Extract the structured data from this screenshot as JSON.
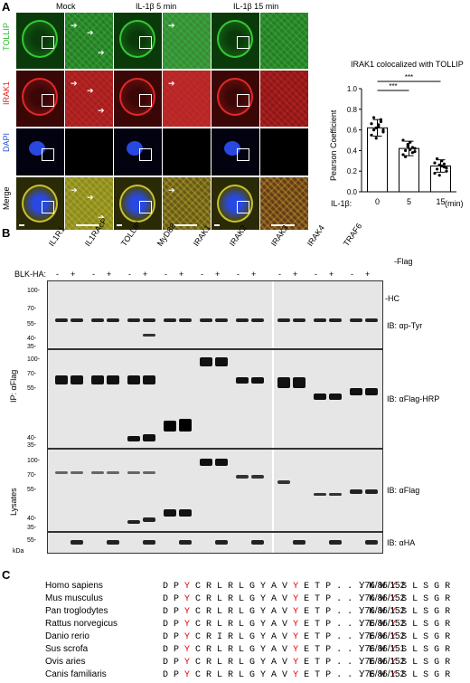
{
  "panels": {
    "a": "A",
    "b": "B",
    "c": "C"
  },
  "panel_a": {
    "conditions": [
      "Mock",
      "IL-1β 5 min",
      "IL-1β 15 min"
    ],
    "rows": [
      {
        "label": "TOLLIP",
        "color": "#2db82d"
      },
      {
        "label": "IRAK1",
        "color": "#e02020"
      },
      {
        "label": "DAPI",
        "color": "#2a4fd6"
      },
      {
        "label": "Merge",
        "color": "#000000"
      }
    ]
  },
  "chart_data": {
    "type": "bar",
    "title": "IRAK1 colocalized with TOLLIP",
    "ylabel": "Pearson Coefficient",
    "xlabel": "IL-1β:",
    "x_unit": "(min)",
    "categories": [
      "0",
      "5",
      "15"
    ],
    "values": [
      0.62,
      0.42,
      0.25
    ],
    "errors": [
      0.08,
      0.07,
      0.06
    ],
    "ylim": [
      0.0,
      1.0
    ],
    "yticks": [
      "0.0",
      "0.2",
      "0.4",
      "0.6",
      "0.8",
      "1.0"
    ],
    "significance": [
      "***",
      "***"
    ],
    "points": [
      [
        0.55,
        0.6,
        0.62,
        0.65,
        0.7,
        0.58,
        0.66,
        0.72,
        0.52,
        0.63,
        0.68,
        0.6
      ],
      [
        0.36,
        0.4,
        0.44,
        0.48,
        0.38,
        0.42,
        0.5,
        0.34,
        0.46,
        0.41,
        0.43,
        0.39
      ],
      [
        0.18,
        0.22,
        0.26,
        0.3,
        0.24,
        0.2,
        0.28,
        0.32,
        0.16,
        0.25,
        0.27,
        0.23
      ]
    ]
  },
  "panel_b": {
    "lanes": [
      "IL1R1",
      "IL1RAcP",
      "TOLLIP",
      "MyD88",
      "IRAK1",
      "IRAK2",
      "IRAK3",
      "IRAK4",
      "TRAF6"
    ],
    "flag_suffix": "-Flag",
    "blk_label": "BLK-HA:",
    "signs": [
      "-",
      "+",
      "-",
      "+",
      "-",
      "+",
      "-",
      "+",
      "-",
      "+",
      "-",
      "+",
      "-",
      "+",
      "-",
      "+",
      "-",
      "+"
    ],
    "ip_label": "IP: αFlag",
    "lysates_label": "Lysates",
    "kda": "kDa",
    "hc_label": "-HC",
    "blots": [
      {
        "ib": "IB: αp-Tyr",
        "markers": [
          "100-",
          "70-",
          "55-",
          "40-",
          "35-"
        ]
      },
      {
        "ib": "IB: αFlag-HRP",
        "markers": [
          "100-",
          "70-",
          "55-",
          "40-",
          "35-"
        ]
      },
      {
        "ib": "IB: αFlag",
        "markers": [
          "100-",
          "70-",
          "55-",
          "40-",
          "35-"
        ]
      },
      {
        "ib": "IB: αHA",
        "markers": [
          "55-"
        ]
      }
    ]
  },
  "panel_c": {
    "rows": [
      {
        "species": "Homo sapiens",
        "seq": [
          "D P ",
          "Y",
          " C R L R L G Y A V ",
          "Y",
          " E T P . . . K W ",
          "Y",
          " S L S G R"
        ],
        "site": "Y76/86/152"
      },
      {
        "species": "Mus musculus",
        "seq": [
          "D P ",
          "Y",
          " C R L R L G Y A V ",
          "Y",
          " E T P . . . K W ",
          "Y",
          " S L S G R"
        ],
        "site": "Y76/86/152"
      },
      {
        "species": "Pan troglodytes",
        "seq": [
          "D P ",
          "Y",
          " C R L R L G Y A V ",
          "Y",
          " E T P . . . K W ",
          "Y",
          " S L S G R"
        ],
        "site": "Y76/86/152"
      },
      {
        "species": "Rattus norvegicus",
        "seq": [
          "D P ",
          "Y",
          " C R L R L G Y A V ",
          "Y",
          " E T P . . . E W ",
          "Y",
          " S L S G R"
        ],
        "site": "Y76/86/152"
      },
      {
        "species": "Danio rerio",
        "seq": [
          "D P ",
          "Y",
          " C R I R L G Y A V ",
          "Y",
          " E T P . . . E W ",
          "Y",
          " S L S G R"
        ],
        "site": "Y76/86/152"
      },
      {
        "species": "Sus scrofa",
        "seq": [
          "D P ",
          "Y",
          " C R L R L G Y A V ",
          "Y",
          " E T P . . . E W ",
          "Y",
          " S L S G R"
        ],
        "site": "Y76/86/151"
      },
      {
        "species": "Ovis aries",
        "seq": [
          "D P ",
          "Y",
          " C R L R L G Y A V ",
          "Y",
          " E T P . . . E W ",
          "Y",
          " S L S G R"
        ],
        "site": "Y76/86/152"
      },
      {
        "species": "Canis familiaris",
        "seq": [
          "D P ",
          "Y",
          " C R L R L G Y A V ",
          "Y",
          " E T P . . . E W ",
          "Y",
          " S L S G R"
        ],
        "site": "Y76/86/152"
      }
    ]
  }
}
